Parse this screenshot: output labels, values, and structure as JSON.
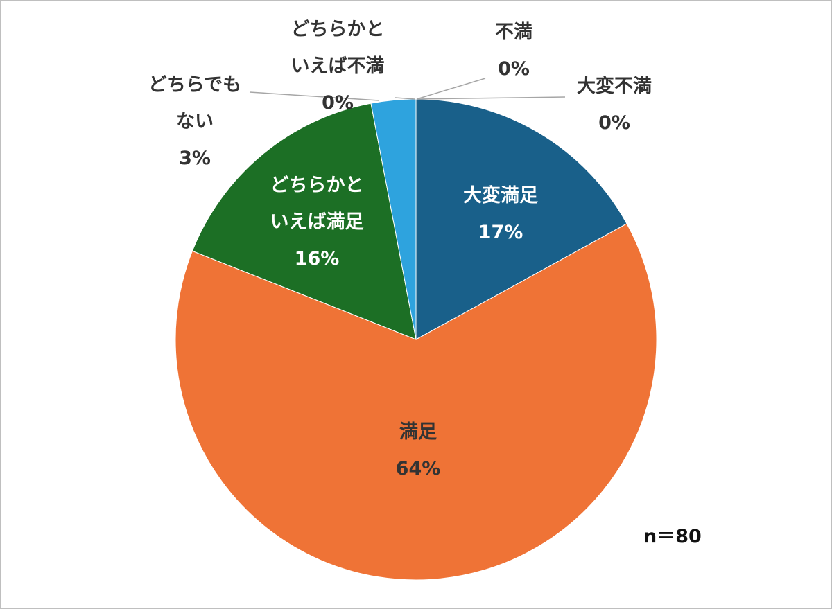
{
  "chart_data": {
    "type": "pie",
    "categories": [
      "大変満足",
      "満足",
      "どちらかといえば満足",
      "どちらでもない",
      "どちらかといえば不満",
      "不満",
      "大変不満"
    ],
    "values": [
      17,
      64,
      16,
      3,
      0,
      0,
      0
    ],
    "value_labels": [
      "17%",
      "64%",
      "16%",
      "3%",
      "0%",
      "0%",
      "0%"
    ],
    "colors": [
      "#19608a",
      "#ef7336",
      "#1c6f25",
      "#2ea3de",
      "#8a8a8a",
      "#4a7ebb",
      "#999999"
    ],
    "annotation": "n＝80"
  }
}
